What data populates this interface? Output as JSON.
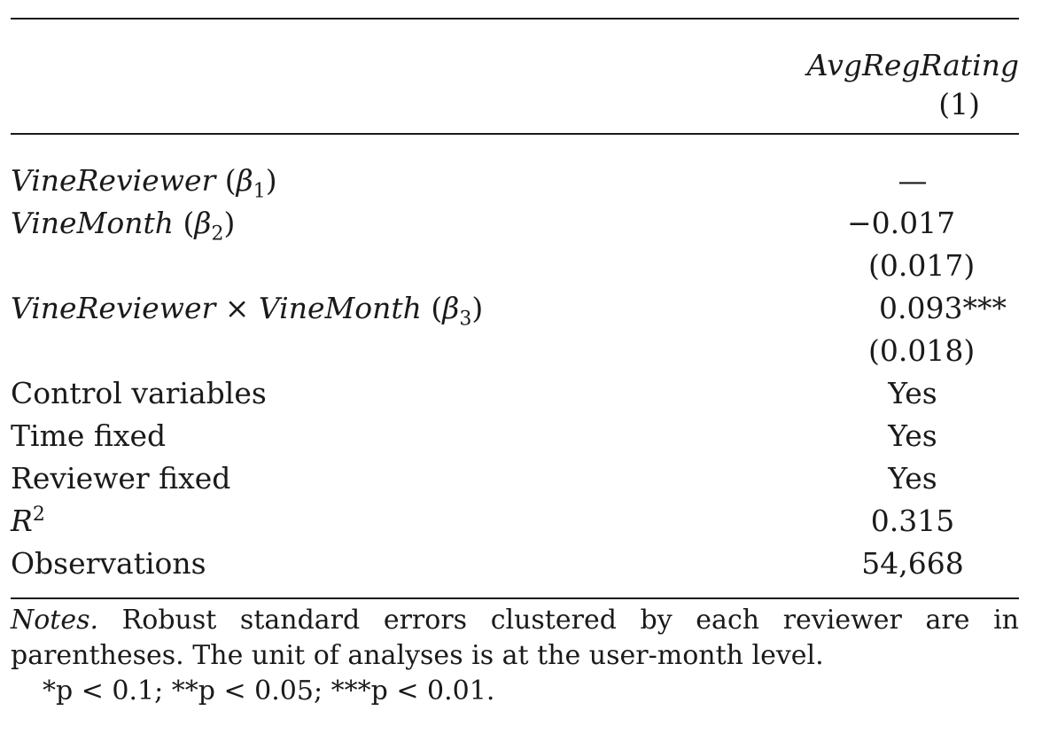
{
  "table": {
    "dep_var": "AvgRegRating",
    "col_num": "(1)",
    "rows": [
      {
        "label_italic": "VineReviewer",
        "label_rest": " (",
        "beta": "β",
        "sub": "1",
        "close": ")",
        "value": "—"
      },
      {
        "label_italic": "VineMonth",
        "label_rest": " (",
        "beta": "β",
        "sub": "2",
        "close": ")",
        "value": "−0.017"
      },
      {
        "value": "(0.017)"
      },
      {
        "label_italic": "VineReviewer",
        "times": " × ",
        "label_italic2": "VineMonth",
        "label_rest": " (",
        "beta": "β",
        "sub": "3",
        "close": ")",
        "value": "0.093***"
      },
      {
        "value": "(0.018)"
      },
      {
        "label": "Control variables",
        "value": "Yes"
      },
      {
        "label": "Time fixed",
        "value": "Yes"
      },
      {
        "label": "Reviewer fixed",
        "value": "Yes"
      },
      {
        "label_italic": "R",
        "sup": "2",
        "value": "0.315"
      },
      {
        "label": "Observations",
        "value": "54,668"
      }
    ]
  },
  "notes": {
    "lead": "Notes.",
    "line1": " Robust standard errors clustered by each reviewer are in",
    "line2": "parentheses. The unit of analyses is at the user-month level.",
    "line3": "*p < 0.1; **p < 0.05; ***p < 0.01."
  }
}
